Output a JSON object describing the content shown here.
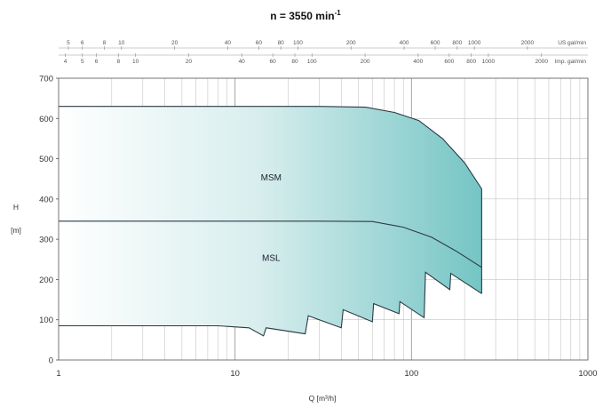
{
  "chart_data": {
    "type": "area",
    "title": "n = 3550 min",
    "title_sup": "-1",
    "xlabel": "Q [m³/h]",
    "ylabel_line1": "H",
    "ylabel_line2": "[m]",
    "x_scale": "log",
    "xlim": [
      1,
      1000
    ],
    "ylim": [
      0,
      700
    ],
    "x_ticks": [
      1,
      10,
      100,
      1000
    ],
    "x_tick_labels": [
      "1",
      "10",
      "100",
      "1000"
    ],
    "y_ticks": [
      0,
      100,
      200,
      300,
      400,
      500,
      600,
      700
    ],
    "y_tick_labels": [
      "0",
      "100",
      "200",
      "300",
      "400",
      "500",
      "600",
      "700"
    ],
    "grid": true,
    "top_axis_us": {
      "unit": "US gal/min",
      "values": [
        5,
        6,
        8,
        10,
        20,
        40,
        60,
        80,
        100,
        200,
        400,
        600,
        800,
        1000,
        2000
      ],
      "labels": [
        "5",
        "6",
        "8",
        "10",
        "20",
        "40",
        "60",
        "80",
        "100",
        "200",
        "400",
        "600",
        "800",
        "1000",
        "2000"
      ]
    },
    "top_axis_imp": {
      "unit": "Imp. gal/min",
      "values": [
        4,
        5,
        6,
        8,
        10,
        20,
        40,
        60,
        80,
        100,
        200,
        400,
        600,
        800,
        1000,
        2000
      ],
      "labels": [
        "4",
        "5",
        "6",
        "8",
        "10",
        "20",
        "40",
        "60",
        "80",
        "100",
        "200",
        "400",
        "600",
        "800",
        "1000",
        "2000"
      ]
    },
    "regions": [
      {
        "name": "MSM",
        "label_at": [
          13,
          455
        ],
        "upper": [
          [
            1,
            630
          ],
          [
            10,
            630
          ],
          [
            30,
            630
          ],
          [
            55,
            628
          ],
          [
            80,
            615
          ],
          [
            110,
            595
          ],
          [
            150,
            550
          ],
          [
            200,
            490
          ],
          [
            250,
            425
          ]
        ],
        "lower": [
          [
            1,
            345
          ],
          [
            10,
            345
          ],
          [
            30,
            345
          ],
          [
            60,
            344
          ],
          [
            90,
            330
          ],
          [
            130,
            305
          ],
          [
            180,
            270
          ],
          [
            250,
            230
          ]
        ]
      },
      {
        "name": "MSL",
        "label_at": [
          13,
          255
        ],
        "upper": [
          [
            1,
            345
          ],
          [
            10,
            345
          ],
          [
            30,
            345
          ],
          [
            60,
            344
          ],
          [
            90,
            330
          ],
          [
            130,
            305
          ],
          [
            180,
            270
          ],
          [
            250,
            230
          ]
        ],
        "lower": [
          [
            1,
            85
          ],
          [
            8,
            85
          ],
          [
            12,
            80
          ],
          [
            14.5,
            60
          ],
          [
            15,
            80
          ],
          [
            25,
            65
          ],
          [
            26,
            110
          ],
          [
            40,
            80
          ],
          [
            41,
            125
          ],
          [
            60,
            95
          ],
          [
            61,
            140
          ],
          [
            85,
            115
          ],
          [
            86,
            145
          ],
          [
            118,
            105
          ],
          [
            120,
            218
          ],
          [
            165,
            175
          ],
          [
            167,
            215
          ],
          [
            250,
            165
          ]
        ]
      }
    ],
    "right_edge": {
      "x": 250,
      "ylow": 165,
      "yhigh": 425
    },
    "fill_colors": {
      "left": "#ffffff",
      "right": "#6ec2c2"
    },
    "line_color": "#2a3a44"
  }
}
